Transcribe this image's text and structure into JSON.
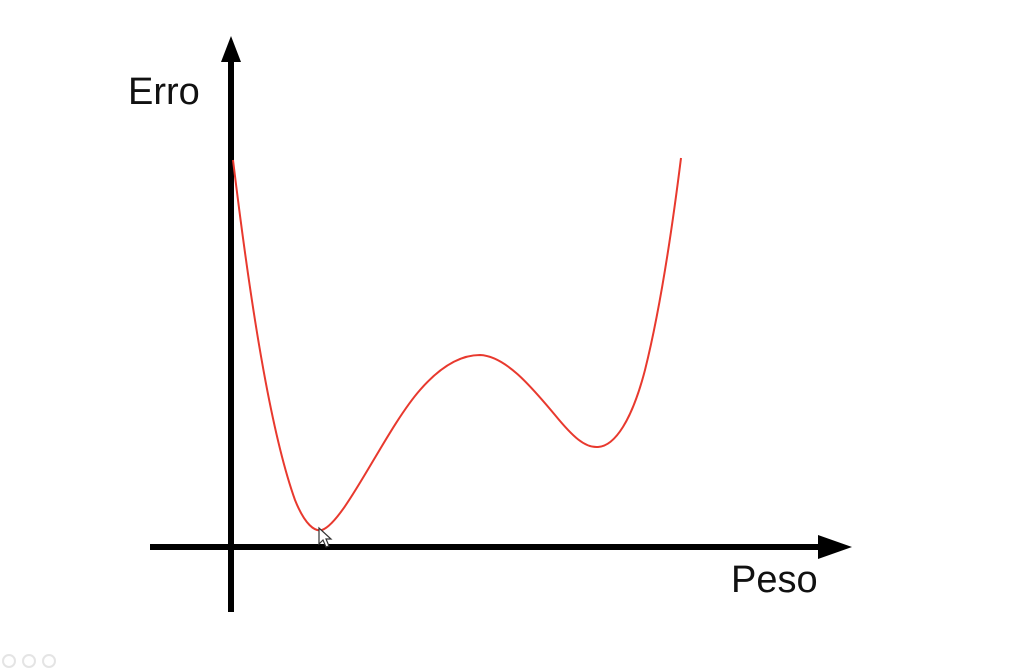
{
  "diagram": {
    "y_axis_label": "Erro",
    "x_axis_label": "Peso",
    "curve_color": "#e8392e",
    "axis_color": "#000000",
    "curve_kind": "error-vs-weight with global minimum and local minimum"
  },
  "icons": {
    "cursor": "mouse-pointer-icon"
  }
}
